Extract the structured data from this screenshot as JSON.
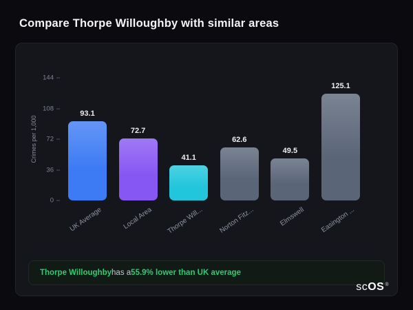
{
  "page": {
    "title": "Compare Thorpe Willoughby with similar areas"
  },
  "chart_data": {
    "type": "bar",
    "title": "Compare Thorpe Willoughby with similar areas",
    "xlabel": "",
    "ylabel": "Crimes per 1,000",
    "categories": [
      "UK Average",
      "Local Area",
      "Thorpe Will...",
      "Norton Fitz...",
      "Elmswell",
      "Easington ..."
    ],
    "values": [
      93.1,
      72.7,
      41.1,
      62.6,
      49.5,
      125.1
    ],
    "bar_colors": [
      "#3d7bf4",
      "#8757f3",
      "#22c6dc",
      "#5a6578",
      "#5a6578",
      "#5a6578"
    ],
    "yticks": [
      144,
      108,
      72,
      36,
      0
    ],
    "ylim": [
      0,
      144
    ],
    "grid": false,
    "legend": false
  },
  "summary": {
    "area": "Thorpe Willoughby",
    "middle": " has a ",
    "highlight": "55.9% lower than UK average",
    "accent_color": "#2ecc71"
  },
  "logo": {
    "sc": "sc",
    "os": "OS",
    "reg": "®"
  }
}
